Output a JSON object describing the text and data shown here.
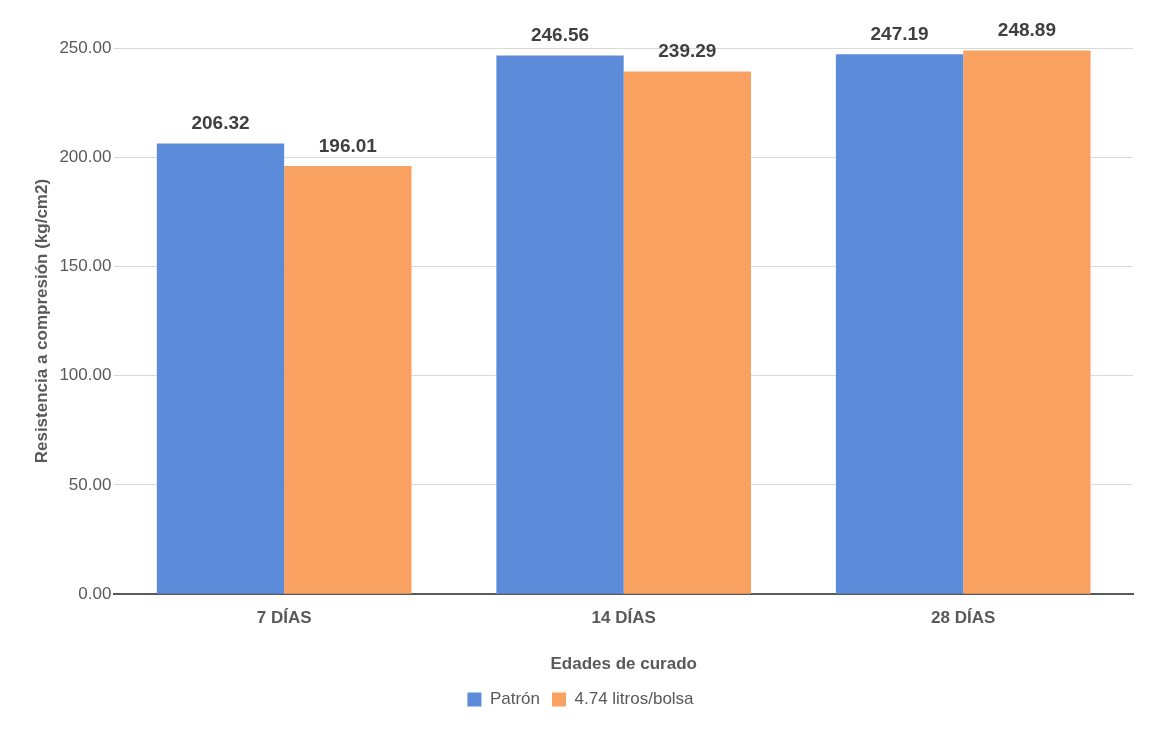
{
  "chart_data": {
    "type": "bar",
    "categories": [
      "7 DÍAS",
      "14 DÍAS",
      "28 DÍAS"
    ],
    "series": [
      {
        "name": "Patrón",
        "color": "#5b8bd9",
        "values": [
          206.32,
          246.56,
          247.19
        ]
      },
      {
        "name": "4.74 litros/bolsa",
        "color": "#f9a160",
        "values": [
          196.01,
          239.29,
          248.89
        ]
      }
    ],
    "xlabel": "Edades de curado",
    "ylabel": "Resistencia a compresión (kg/cm2)",
    "ylim": [
      0,
      250
    ],
    "yticks": [
      {
        "value": 0,
        "label": "0.00"
      },
      {
        "value": 50,
        "label": "50.00"
      },
      {
        "value": 100,
        "label": "100.00"
      },
      {
        "value": 150,
        "label": "150.00"
      },
      {
        "value": 200,
        "label": "200.00"
      },
      {
        "value": 250,
        "label": "250.00"
      }
    ],
    "grid": "y",
    "legend": "bottom",
    "data_labels": true
  }
}
